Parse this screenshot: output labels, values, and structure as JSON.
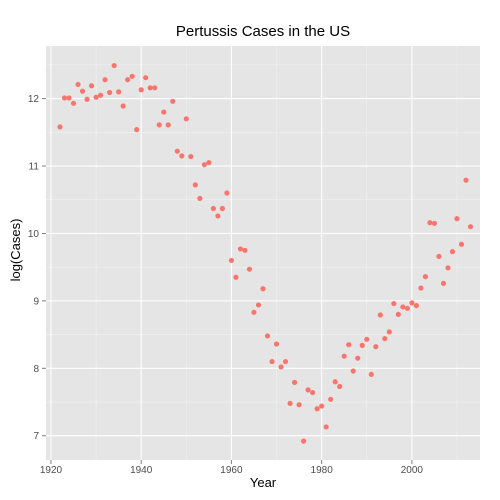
{
  "chart_data": {
    "type": "scatter",
    "title": "Pertussis Cases in the US",
    "xlabel": "Year",
    "ylabel": "log(Cases)",
    "xlim": [
      1918.9,
      2015.1
    ],
    "ylim": [
      6.64,
      12.78
    ],
    "x_ticks": [
      1920,
      1940,
      1960,
      1980,
      2000
    ],
    "y_ticks": [
      7,
      8,
      9,
      10,
      11,
      12
    ],
    "grid": true,
    "legend": "none",
    "colors": {
      "panel": "#E5E5E5",
      "grid_major": "#FFFFFF",
      "grid_minor": "#F2F2F2",
      "point": "#F8766D"
    },
    "points": [
      {
        "x": 1922,
        "y": 11.58
      },
      {
        "x": 1923,
        "y": 12.01
      },
      {
        "x": 1924,
        "y": 12.01
      },
      {
        "x": 1925,
        "y": 11.93
      },
      {
        "x": 1926,
        "y": 12.21
      },
      {
        "x": 1927,
        "y": 12.11
      },
      {
        "x": 1928,
        "y": 11.99
      },
      {
        "x": 1929,
        "y": 12.19
      },
      {
        "x": 1930,
        "y": 12.02
      },
      {
        "x": 1931,
        "y": 12.05
      },
      {
        "x": 1932,
        "y": 12.28
      },
      {
        "x": 1933,
        "y": 12.09
      },
      {
        "x": 1934,
        "y": 12.49
      },
      {
        "x": 1935,
        "y": 12.1
      },
      {
        "x": 1936,
        "y": 11.89
      },
      {
        "x": 1937,
        "y": 12.28
      },
      {
        "x": 1938,
        "y": 12.33
      },
      {
        "x": 1939,
        "y": 11.54
      },
      {
        "x": 1940,
        "y": 12.13
      },
      {
        "x": 1941,
        "y": 12.31
      },
      {
        "x": 1942,
        "y": 12.16
      },
      {
        "x": 1943,
        "y": 12.16
      },
      {
        "x": 1944,
        "y": 11.61
      },
      {
        "x": 1945,
        "y": 11.8
      },
      {
        "x": 1946,
        "y": 11.61
      },
      {
        "x": 1947,
        "y": 11.96
      },
      {
        "x": 1948,
        "y": 11.22
      },
      {
        "x": 1949,
        "y": 11.15
      },
      {
        "x": 1950,
        "y": 11.7
      },
      {
        "x": 1951,
        "y": 11.14
      },
      {
        "x": 1952,
        "y": 10.72
      },
      {
        "x": 1953,
        "y": 10.52
      },
      {
        "x": 1954,
        "y": 11.02
      },
      {
        "x": 1955,
        "y": 11.05
      },
      {
        "x": 1956,
        "y": 10.37
      },
      {
        "x": 1957,
        "y": 10.26
      },
      {
        "x": 1958,
        "y": 10.37
      },
      {
        "x": 1959,
        "y": 10.6
      },
      {
        "x": 1960,
        "y": 9.6
      },
      {
        "x": 1961,
        "y": 9.35
      },
      {
        "x": 1962,
        "y": 9.77
      },
      {
        "x": 1963,
        "y": 9.75
      },
      {
        "x": 1964,
        "y": 9.47
      },
      {
        "x": 1965,
        "y": 8.83
      },
      {
        "x": 1966,
        "y": 8.94
      },
      {
        "x": 1967,
        "y": 9.18
      },
      {
        "x": 1968,
        "y": 8.48
      },
      {
        "x": 1969,
        "y": 8.1
      },
      {
        "x": 1970,
        "y": 8.36
      },
      {
        "x": 1971,
        "y": 8.02
      },
      {
        "x": 1972,
        "y": 8.1
      },
      {
        "x": 1973,
        "y": 7.48
      },
      {
        "x": 1974,
        "y": 7.79
      },
      {
        "x": 1975,
        "y": 7.46
      },
      {
        "x": 1976,
        "y": 6.92
      },
      {
        "x": 1977,
        "y": 7.68
      },
      {
        "x": 1978,
        "y": 7.64
      },
      {
        "x": 1979,
        "y": 7.4
      },
      {
        "x": 1980,
        "y": 7.44
      },
      {
        "x": 1981,
        "y": 7.13
      },
      {
        "x": 1982,
        "y": 7.54
      },
      {
        "x": 1983,
        "y": 7.8
      },
      {
        "x": 1984,
        "y": 7.73
      },
      {
        "x": 1985,
        "y": 8.18
      },
      {
        "x": 1986,
        "y": 8.35
      },
      {
        "x": 1987,
        "y": 7.96
      },
      {
        "x": 1988,
        "y": 8.15
      },
      {
        "x": 1989,
        "y": 8.34
      },
      {
        "x": 1990,
        "y": 8.43
      },
      {
        "x": 1991,
        "y": 7.91
      },
      {
        "x": 1992,
        "y": 8.32
      },
      {
        "x": 1993,
        "y": 8.79
      },
      {
        "x": 1994,
        "y": 8.44
      },
      {
        "x": 1995,
        "y": 8.54
      },
      {
        "x": 1996,
        "y": 8.96
      },
      {
        "x": 1997,
        "y": 8.8
      },
      {
        "x": 1998,
        "y": 8.91
      },
      {
        "x": 1999,
        "y": 8.89
      },
      {
        "x": 2000,
        "y": 8.97
      },
      {
        "x": 2001,
        "y": 8.93
      },
      {
        "x": 2002,
        "y": 9.19
      },
      {
        "x": 2003,
        "y": 9.36
      },
      {
        "x": 2004,
        "y": 10.16
      },
      {
        "x": 2005,
        "y": 10.15
      },
      {
        "x": 2006,
        "y": 9.66
      },
      {
        "x": 2007,
        "y": 9.26
      },
      {
        "x": 2008,
        "y": 9.49
      },
      {
        "x": 2009,
        "y": 9.73
      },
      {
        "x": 2010,
        "y": 10.22
      },
      {
        "x": 2011,
        "y": 9.84
      },
      {
        "x": 2012,
        "y": 10.79
      },
      {
        "x": 2013,
        "y": 10.1
      }
    ]
  }
}
